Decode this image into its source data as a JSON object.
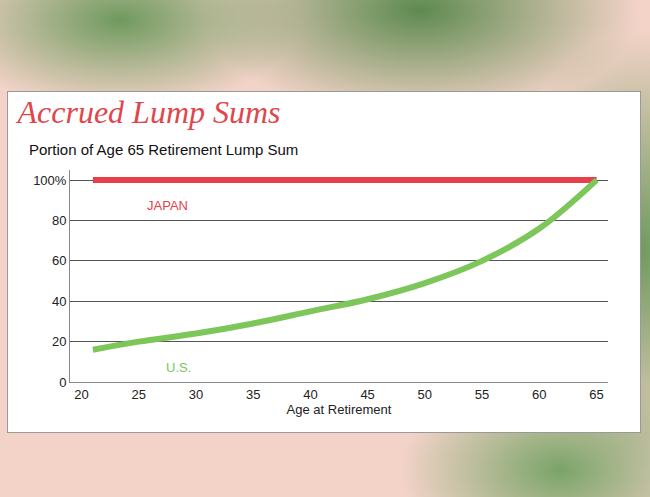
{
  "chart_data": {
    "type": "line",
    "title": "Accrued Lump Sums",
    "subtitle": "Portion of Age 65 Retirement Lump Sum",
    "x_label": "Age at Retirement",
    "x": [
      21,
      25,
      30,
      35,
      40,
      45,
      50,
      55,
      60,
      65
    ],
    "series": [
      {
        "name": "JAPAN",
        "color": "#e8404a",
        "values": [
          100,
          100,
          100,
          100,
          100,
          100,
          100,
          100,
          100,
          100
        ]
      },
      {
        "name": "U.S.",
        "color": "#7cc65a",
        "values": [
          16,
          20,
          24,
          29,
          35,
          41,
          49,
          60,
          76,
          100
        ]
      }
    ],
    "xlim": [
      19,
      66
    ],
    "xticks": [
      20,
      25,
      30,
      35,
      40,
      45,
      50,
      55,
      60,
      65
    ],
    "ylim": [
      0,
      105
    ],
    "yticks": [
      0,
      20,
      40,
      60,
      80,
      {
        "value": 100,
        "label": "100%"
      }
    ],
    "grid": true
  }
}
